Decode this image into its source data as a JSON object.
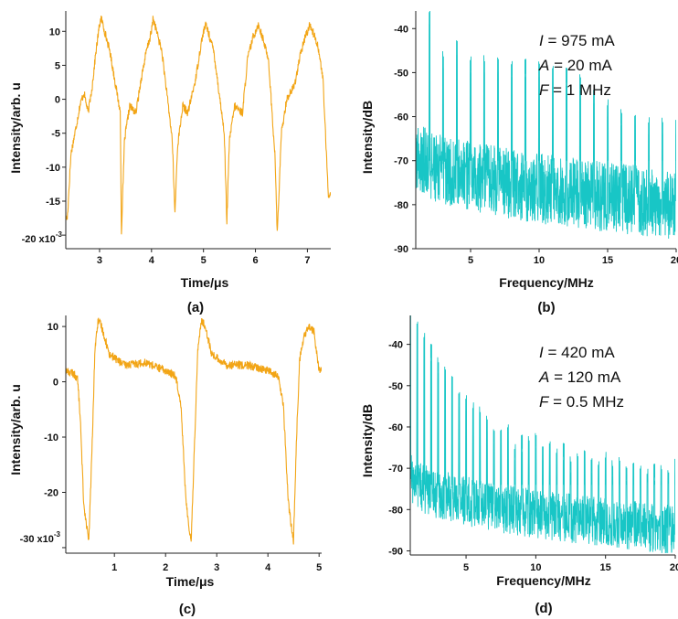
{
  "chart_data": [
    {
      "panel": "(a)",
      "type": "line",
      "xlabel": "Time/μs",
      "ylabel": "Intensity/arb. u",
      "xlim": [
        2.35,
        7.45
      ],
      "ylim": [
        -22,
        13
      ],
      "xticks": [
        "3",
        "4",
        "5",
        "6",
        "7"
      ],
      "xtick_values": [
        3,
        4,
        5,
        6,
        7
      ],
      "yticks": [
        "10",
        "5",
        "0",
        "-5",
        "-10",
        "-15"
      ],
      "ytick_values": [
        10,
        5,
        0,
        -5,
        -10,
        -15
      ],
      "ymin_tick_label": "-20 x10",
      "ymin_tick_exp": "-3",
      "ymin_tick_value": -20,
      "color": "#F2A516",
      "series": [
        {
          "x": [
            2.38,
            2.45,
            2.55,
            2.62,
            2.7,
            2.78,
            2.86,
            2.93,
            3.0,
            3.03,
            3.2,
            3.4,
            3.42,
            3.48,
            3.58,
            3.7,
            3.8,
            3.9,
            4.0,
            4.03,
            4.2,
            4.4,
            4.45,
            4.5,
            4.6,
            4.7,
            4.85,
            4.95,
            5.0,
            5.05,
            5.2,
            5.4,
            5.45,
            5.5,
            5.6,
            5.75,
            5.85,
            5.95,
            6.05,
            6.1,
            6.25,
            6.38,
            6.42,
            6.5,
            6.6,
            6.75,
            6.85,
            6.95,
            7.05,
            7.1,
            7.2,
            7.3,
            7.4
          ],
          "y": [
            -17.5,
            -8,
            -4,
            -1,
            1,
            -2,
            2,
            7,
            11,
            12,
            7,
            -2,
            -20,
            -6,
            -1,
            -2,
            3,
            7,
            10,
            12,
            7,
            -6,
            -17,
            -7,
            -1,
            -2,
            3,
            8,
            10,
            11,
            7,
            -5,
            -18,
            -6,
            -1,
            -2,
            6,
            9,
            11,
            10,
            6,
            -9,
            -20,
            -5,
            0,
            2,
            6,
            9,
            11,
            10,
            8,
            3,
            -14
          ]
        }
      ]
    },
    {
      "panel": "(b)",
      "type": "line",
      "xlabel": "Frequency/MHz",
      "ylabel": "Intensity/dB",
      "xlim": [
        1,
        20
      ],
      "ylim": [
        -90,
        -36
      ],
      "xticks": [
        "5",
        "10",
        "15",
        "20"
      ],
      "xtick_values": [
        5,
        10,
        15,
        20
      ],
      "yticks": [
        "-40",
        "-50",
        "-60",
        "-70",
        "-80",
        "-90"
      ],
      "ytick_values": [
        -40,
        -50,
        -60,
        -70,
        -80,
        -90
      ],
      "color": "#18C6C6",
      "annotations": [
        {
          "var": "I",
          "text": " = 975 mA"
        },
        {
          "var": "A",
          "text": " = 20 mA"
        },
        {
          "var": "F",
          "text": " = 1 MHz"
        }
      ],
      "noise_floor": {
        "start": -68,
        "end": -80,
        "spread": 8
      },
      "harmonics": {
        "x": [
          2,
          3,
          4,
          5,
          6,
          7,
          8,
          9,
          10,
          11,
          12,
          13,
          14,
          15,
          16,
          17,
          18,
          19,
          20
        ],
        "y": [
          -39,
          -49,
          -46,
          -50,
          -50,
          -50,
          -51,
          -51,
          -51,
          -52,
          -53,
          -54,
          -57,
          -60,
          -62,
          -63,
          -64,
          -64,
          -64
        ]
      }
    },
    {
      "panel": "(c)",
      "type": "line",
      "xlabel": "Time/μs",
      "ylabel": "Intensity/arb. u",
      "xlim": [
        0.05,
        5.05
      ],
      "ylim": [
        -31,
        12
      ],
      "xticks": [
        "1",
        "2",
        "3",
        "4",
        "5"
      ],
      "xtick_values": [
        1,
        2,
        3,
        4,
        5
      ],
      "yticks": [
        "10",
        "0",
        "-10",
        "-20"
      ],
      "ytick_values": [
        10,
        0,
        -10,
        -20
      ],
      "ymin_tick_label": "-30 x10",
      "ymin_tick_exp": "-3",
      "ymin_tick_value": -30,
      "color": "#F2A516",
      "series": [
        {
          "x": [
            0.05,
            0.2,
            0.28,
            0.33,
            0.4,
            0.5,
            0.57,
            0.62,
            0.68,
            0.75,
            0.9,
            1.2,
            1.6,
            2.0,
            2.2,
            2.3,
            2.4,
            2.5,
            2.57,
            2.63,
            2.7,
            2.78,
            2.9,
            3.2,
            3.6,
            4.0,
            4.2,
            4.3,
            4.4,
            4.5,
            4.56,
            4.62,
            4.7,
            4.8,
            4.9,
            5.0
          ],
          "y": [
            2,
            1.5,
            0.5,
            -6,
            -22,
            -29,
            -10,
            6,
            11,
            10,
            5,
            3,
            3.5,
            2,
            1,
            -4,
            -22,
            -29,
            -10,
            6,
            11,
            10,
            5,
            3,
            3,
            2,
            1,
            -4,
            -22,
            -29,
            -10,
            4,
            8,
            10,
            9,
            2
          ]
        }
      ]
    },
    {
      "panel": "(d)",
      "type": "line",
      "xlabel": "Frequency/MHz",
      "ylabel": "Intensity/dB",
      "xlim": [
        1,
        20
      ],
      "ylim": [
        -91,
        -33
      ],
      "xticks": [
        "5",
        "10",
        "15",
        "20"
      ],
      "xtick_values": [
        5,
        10,
        15,
        20
      ],
      "yticks": [
        "-40",
        "-50",
        "-60",
        "-70",
        "-80",
        "-90"
      ],
      "ytick_values": [
        -40,
        -50,
        -60,
        -70,
        -80,
        -90
      ],
      "color": "#18C6C6",
      "annotations": [
        {
          "var": "I",
          "text": " = 420 mA"
        },
        {
          "var": "A",
          "text": " = 120 mA"
        },
        {
          "var": "F",
          "text": " = 0.5 MHz"
        }
      ],
      "noise_floor": {
        "start": -72,
        "end": -85,
        "spread": 6
      },
      "harmonics": {
        "x": [
          1.0,
          1.5,
          2.0,
          2.5,
          3.0,
          3.5,
          4.0,
          4.5,
          5.0,
          5.5,
          6.0,
          6.5,
          7.0,
          7.5,
          8.0,
          8.5,
          9.0,
          9.5,
          10.0,
          10.5,
          11.0,
          11.5,
          12.0,
          12.5,
          13.0,
          13.5,
          14.0,
          14.5,
          15.0,
          15.5,
          16.0,
          16.5,
          17.0,
          17.5,
          18.0,
          18.5,
          19.0,
          19.5,
          20.0
        ],
        "y": [
          -36,
          -38,
          -41,
          -44,
          -47,
          -49,
          -51,
          -55,
          -56,
          -58,
          -59,
          -61,
          -64,
          -64,
          -63,
          -68,
          -66,
          -66,
          -65,
          -68,
          -67,
          -69,
          -68,
          -71,
          -70,
          -69,
          -71,
          -72,
          -70,
          -72,
          -71,
          -73,
          -72,
          -73,
          -74,
          -73,
          -73,
          -74,
          -71
        ]
      }
    }
  ]
}
